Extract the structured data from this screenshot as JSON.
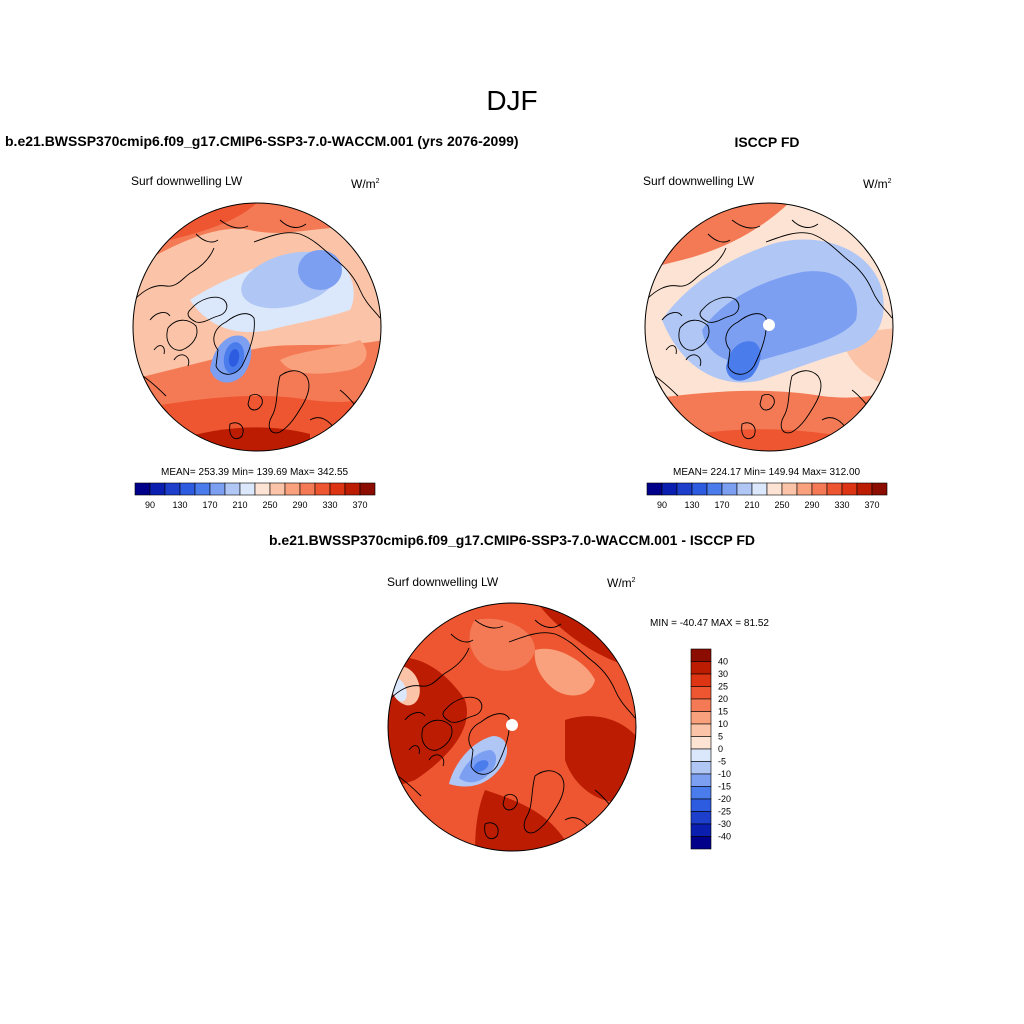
{
  "figure": {
    "title": "DJF",
    "units_base": "W/m",
    "units_exp": "2"
  },
  "panels": [
    {
      "id": "model",
      "title": "b.e21.BWSSP370cmip6.f09_g17.CMIP6-SSP3-7.0-WACCM.001 (yrs 2076-2099)",
      "variable": "Surf downwelling LW",
      "stats": "MEAN= 253.39  Min= 139.69  Max= 342.55"
    },
    {
      "id": "obs",
      "title": "ISCCP FD",
      "variable": "Surf downwelling LW",
      "stats": "MEAN= 224.17  Min= 149.94  Max= 312.00"
    },
    {
      "id": "diff",
      "title": "b.e21.BWSSP370cmip6.f09_g17.CMIP6-SSP3-7.0-WACCM.001 - ISCCP FD",
      "variable": "Surf downwelling LW",
      "stats": "MIN = -40.47 MAX =  81.52"
    }
  ],
  "colorbar_main": {
    "colors": [
      "#00008b",
      "#0a1fb0",
      "#1d3fcc",
      "#2e5ce0",
      "#4b7cec",
      "#7c9ff2",
      "#b0c7f6",
      "#dbe7fb",
      "#fde3d3",
      "#fbc4a8",
      "#f9a07c",
      "#f47a55",
      "#ed5630",
      "#dd3513",
      "#bb1c02",
      "#8b0d00"
    ],
    "labels": [
      "90",
      "130",
      "170",
      "210",
      "250",
      "290",
      "330",
      "370"
    ]
  },
  "colorbar_diff": {
    "colors": [
      "#8b0d00",
      "#bb1c02",
      "#dd3513",
      "#ed5630",
      "#f47a55",
      "#f9a07c",
      "#fbc4a8",
      "#fde3d3",
      "#dbe7fb",
      "#b0c7f6",
      "#7c9ff2",
      "#4b7cec",
      "#2e5ce0",
      "#1d3fcc",
      "#0a1fb0",
      "#00008b"
    ],
    "labels": [
      "40",
      "30",
      "25",
      "20",
      "15",
      "10",
      "5",
      "0",
      "-5",
      "-10",
      "-15",
      "-20",
      "-25",
      "-30",
      "-40"
    ]
  },
  "map_colors": {
    "deep_red": "#bb1c02",
    "red": "#ed5630",
    "orange": "#f47a55",
    "salmon": "#f9a07c",
    "peach": "#fbc4a8",
    "cream": "#fde3d3",
    "pale_blue": "#dbe7fb",
    "light_blue": "#b0c7f6",
    "mid_blue": "#7c9ff2",
    "blue": "#4b7cec",
    "deep_blue": "#2e5ce0",
    "coast": "#000000"
  }
}
